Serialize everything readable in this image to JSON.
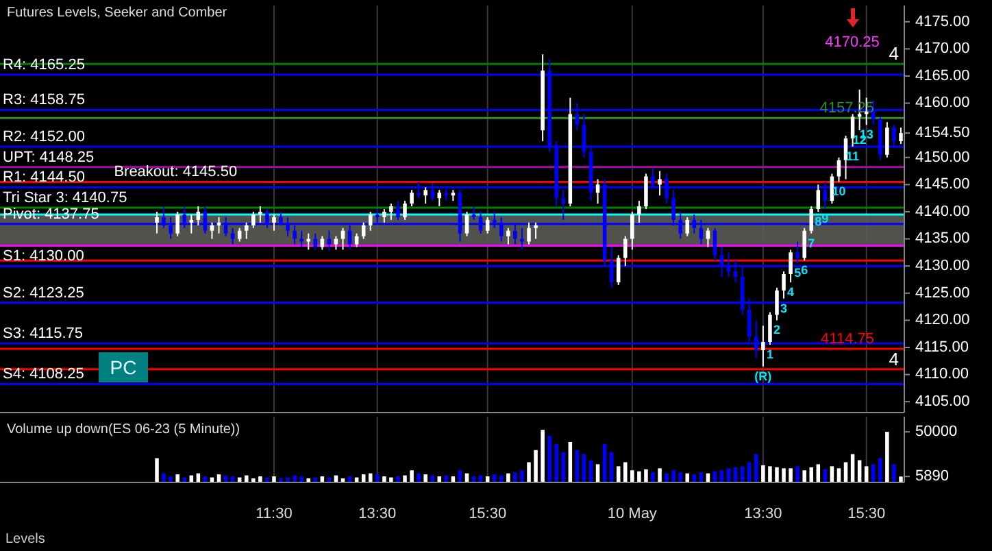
{
  "chart_data": [
    {
      "type": "candlestick",
      "title": "Futures Levels, Seeker and Comber",
      "categories": [
        null,
        null,
        null,
        null,
        null,
        null,
        null,
        null,
        null,
        null,
        null,
        null,
        null,
        null,
        null,
        null,
        null,
        "11:30",
        null,
        null,
        null,
        null,
        null,
        null,
        null,
        null,
        null,
        null,
        null,
        null,
        null,
        null,
        "13:30",
        null,
        null,
        null,
        null,
        null,
        null,
        null,
        null,
        null,
        null,
        null,
        null,
        null,
        null,
        null,
        "15:30",
        null,
        null,
        null,
        null,
        null,
        null,
        null,
        null,
        null,
        null,
        null,
        null,
        null,
        null,
        null,
        null,
        null,
        null,
        null,
        null,
        "10 May",
        null,
        null,
        null,
        null,
        null,
        null,
        null,
        null,
        null,
        null,
        null,
        null,
        null,
        null,
        null,
        null,
        null,
        null,
        "13:30",
        null,
        null,
        null,
        null,
        null,
        null,
        null,
        null,
        null,
        null,
        null,
        null,
        null,
        null,
        "15:30",
        null,
        null,
        null,
        null,
        null
      ],
      "ohlc": [
        [
          4138,
          4140,
          4136,
          4139
        ],
        [
          4139,
          4141,
          4137,
          4137.5
        ],
        [
          4137.5,
          4139,
          4135,
          4136
        ],
        [
          4136,
          4140,
          4135.5,
          4139.5
        ],
        [
          4139.5,
          4141,
          4137,
          4138
        ],
        [
          4138,
          4139.5,
          4136,
          4138.5
        ],
        [
          4138.5,
          4141,
          4137.5,
          4140
        ],
        [
          4140,
          4141,
          4136,
          4136.5
        ],
        [
          4136.5,
          4138,
          4135,
          4137.5
        ],
        [
          4137.5,
          4139,
          4136,
          4138
        ],
        [
          4138,
          4139,
          4135.5,
          4136
        ],
        [
          4136,
          4137,
          4134,
          4135
        ],
        [
          4135,
          4137,
          4134.5,
          4136.5
        ],
        [
          4136.5,
          4138,
          4135,
          4137.5
        ],
        [
          4137.5,
          4140,
          4137,
          4139.5
        ],
        [
          4139.5,
          4141,
          4138,
          4140
        ],
        [
          4140,
          4140.5,
          4137,
          4138
        ],
        [
          4138,
          4139.5,
          4136.5,
          4139
        ],
        [
          4139,
          4140,
          4137.5,
          4138
        ],
        [
          4138,
          4139,
          4135.5,
          4136.5
        ],
        [
          4136.5,
          4137.5,
          4134,
          4135
        ],
        [
          4135,
          4136.5,
          4133.5,
          4134.5
        ],
        [
          4134.5,
          4136,
          4133,
          4135
        ],
        [
          4135,
          4136,
          4133,
          4133.5
        ],
        [
          4133.5,
          4135.5,
          4133,
          4135
        ],
        [
          4135,
          4136.5,
          4132.75,
          4134
        ],
        [
          4134,
          4135.5,
          4133,
          4135
        ],
        [
          4135,
          4137,
          4133,
          4136.5
        ],
        [
          4136.5,
          4137.5,
          4133,
          4134
        ],
        [
          4134,
          4136,
          4133.5,
          4135.5
        ],
        [
          4135.5,
          4138,
          4135,
          4137.5
        ],
        [
          4137.5,
          4140,
          4136.5,
          4139.5
        ],
        [
          4139.5,
          4140.5,
          4138,
          4139
        ],
        [
          4139,
          4140.5,
          4138,
          4140
        ],
        [
          4140,
          4141.5,
          4138.5,
          4141
        ],
        [
          4141,
          4142,
          4138.5,
          4139
        ],
        [
          4139,
          4142,
          4138.5,
          4141.5
        ],
        [
          4141.5,
          4144,
          4141,
          4143.5
        ],
        [
          4143.5,
          4145.5,
          4142.5,
          4143
        ],
        [
          4143,
          4144.5,
          4141.5,
          4144
        ],
        [
          4144,
          4145.25,
          4142,
          4142.5
        ],
        [
          4142.5,
          4144,
          4141,
          4143.5
        ],
        [
          4143.5,
          4144.5,
          4142,
          4143
        ],
        [
          4143,
          4144,
          4142,
          4143.5
        ],
        [
          4143.5,
          4144,
          4134.5,
          4136
        ],
        [
          4136,
          4140,
          4135.5,
          4139.5
        ],
        [
          4139.5,
          4141,
          4138.5,
          4139
        ],
        [
          4139,
          4140,
          4136,
          4136.5
        ],
        [
          4136.5,
          4139,
          4136,
          4138.5
        ],
        [
          4138.5,
          4140,
          4137,
          4138
        ],
        [
          4138,
          4139,
          4134.5,
          4135.5
        ],
        [
          4135.5,
          4137,
          4134,
          4136.5
        ],
        [
          4136.5,
          4138,
          4134,
          4135
        ],
        [
          4135,
          4137,
          4133,
          4134.5
        ],
        [
          4134.5,
          4138,
          4134,
          4137
        ],
        [
          4137,
          4138,
          4135,
          4137.5
        ],
        [
          4155,
          4169,
          4153,
          4166
        ],
        [
          4166,
          4168,
          4151,
          4152
        ],
        [
          4152,
          4153,
          4141,
          4142.5
        ],
        [
          4142.5,
          4144,
          4138.5,
          4141.5
        ],
        [
          4141.5,
          4161,
          4141,
          4158
        ],
        [
          4158,
          4160,
          4155,
          4156
        ],
        [
          4156,
          4158,
          4150,
          4151
        ],
        [
          4151,
          4152,
          4142,
          4143.5
        ],
        [
          4143.5,
          4146,
          4141.5,
          4145
        ],
        [
          4145,
          4146,
          4130,
          4131
        ],
        [
          4131,
          4133.5,
          4126,
          4127
        ],
        [
          4127,
          4132,
          4126.5,
          4131.5
        ],
        [
          4131.5,
          4135.5,
          4130,
          4135
        ],
        [
          4135,
          4140,
          4133,
          4139.5
        ],
        [
          4139.5,
          4142,
          4138,
          4141
        ],
        [
          4141,
          4147,
          4140.5,
          4146.5
        ],
        [
          4146.5,
          4148,
          4144.5,
          4145
        ],
        [
          4145,
          4147.5,
          4143,
          4146
        ],
        [
          4146,
          4147,
          4141.5,
          4142.5
        ],
        [
          4142.5,
          4144,
          4137.5,
          4138.5
        ],
        [
          4138.5,
          4140,
          4135,
          4136
        ],
        [
          4136,
          4139,
          4135.5,
          4138.5
        ],
        [
          4138.5,
          4139.5,
          4136,
          4137
        ],
        [
          4137,
          4138.5,
          4134,
          4135
        ],
        [
          4135,
          4137,
          4133.5,
          4136.5
        ],
        [
          4136.5,
          4137,
          4131,
          4132
        ],
        [
          4132,
          4133.5,
          4128,
          4130
        ],
        [
          4130,
          4132.5,
          4128,
          4129
        ],
        [
          4129,
          4131,
          4127,
          4128
        ],
        [
          4128,
          4130,
          4121,
          4122
        ],
        [
          4122,
          4124,
          4116,
          4117
        ],
        [
          4117,
          4120,
          4113,
          4114.5
        ],
        [
          4114.5,
          4119,
          4111.5,
          4116
        ],
        [
          4116,
          4121.5,
          4115.5,
          4121
        ],
        [
          4121,
          4126,
          4120,
          4125.5
        ],
        [
          4125.5,
          4129,
          4124,
          4128.5
        ],
        [
          4128.5,
          4133,
          4127,
          4132.5
        ],
        [
          4132.5,
          4134.5,
          4130.5,
          4131.5
        ],
        [
          4131.5,
          4137,
          4131,
          4136.5
        ],
        [
          4136.5,
          4141,
          4136,
          4140.5
        ],
        [
          4140.5,
          4145,
          4140,
          4144
        ],
        [
          4144,
          4145.5,
          4140.5,
          4142
        ],
        [
          4142,
          4147,
          4141.5,
          4146.5
        ],
        [
          4146.5,
          4150,
          4145.5,
          4149.5
        ],
        [
          4149.5,
          4154,
          4146,
          4153.5
        ],
        [
          4153.5,
          4158,
          4152,
          4157.5
        ],
        [
          4157.5,
          4162.5,
          4155,
          4158
        ],
        [
          4158,
          4161,
          4156,
          4158.5
        ],
        [
          4158.5,
          4160.5,
          4156,
          4157
        ],
        [
          4157,
          4157.5,
          4149.5,
          4150.5
        ],
        [
          4150.5,
          4156.5,
          4150,
          4155.5
        ],
        [
          4155.5,
          4156,
          4152,
          4153
        ],
        [
          4153,
          4155.5,
          4152.5,
          4154.5
        ]
      ],
      "colors": [
        "#ffffff",
        "#0000ff",
        "#0000ff",
        "#ffffff",
        "#0000ff",
        "#ffffff",
        "#ffffff",
        "#0000ff",
        "#ffffff",
        "#ffffff",
        "#0000ff",
        "#0000ff",
        "#ffffff",
        "#ffffff",
        "#ffffff",
        "#ffffff",
        "#0000ff",
        "#ffffff",
        "#0000ff",
        "#0000ff",
        "#0000ff",
        "#0000ff",
        "#ffffff",
        "#0000ff",
        "#ffffff",
        "#0000ff",
        "#ffffff",
        "#ffffff",
        "#0000ff",
        "#ffffff",
        "#ffffff",
        "#ffffff",
        "#0000ff",
        "#ffffff",
        "#ffffff",
        "#0000ff",
        "#ffffff",
        "#ffffff",
        "#0000ff",
        "#ffffff",
        "#0000ff",
        "#ffffff",
        "#0000ff",
        "#ffffff",
        "#0000ff",
        "#ffffff",
        "#0000ff",
        "#0000ff",
        "#ffffff",
        "#0000ff",
        "#0000ff",
        "#ffffff",
        "#0000ff",
        "#0000ff",
        "#ffffff",
        "#ffffff",
        "#ffffff",
        "#0000ff",
        "#0000ff",
        "#0000ff",
        "#ffffff",
        "#0000ff",
        "#0000ff",
        "#0000ff",
        "#ffffff",
        "#0000ff",
        "#0000ff",
        "#ffffff",
        "#ffffff",
        "#ffffff",
        "#ffffff",
        "#ffffff",
        "#0000ff",
        "#ffffff",
        "#0000ff",
        "#0000ff",
        "#0000ff",
        "#ffffff",
        "#0000ff",
        "#0000ff",
        "#ffffff",
        "#0000ff",
        "#0000ff",
        "#0000ff",
        "#0000ff",
        "#0000ff",
        "#0000ff",
        "#0000ff",
        "#ffffff",
        "#ffffff",
        "#ffffff",
        "#ffffff",
        "#ffffff",
        "#0000ff",
        "#ffffff",
        "#ffffff",
        "#ffffff",
        "#0000ff",
        "#ffffff",
        "#ffffff",
        "#ffffff",
        "#ffffff",
        "#ffffff",
        "#ffffff",
        "#0000ff",
        "#0000ff",
        "#ffffff",
        "#0000ff",
        "#ffffff"
      ],
      "value_labels": [
        null,
        null,
        null,
        null,
        null,
        null,
        null,
        null,
        null,
        null,
        null,
        null,
        null,
        null,
        null,
        null,
        null,
        null,
        null,
        null,
        null,
        null,
        null,
        null,
        null,
        null,
        null,
        null,
        null,
        null,
        null,
        null,
        null,
        null,
        null,
        null,
        null,
        null,
        null,
        null,
        null,
        null,
        null,
        null,
        null,
        null,
        null,
        null,
        null,
        null,
        null,
        null,
        null,
        null,
        null,
        null,
        null,
        null,
        null,
        null,
        null,
        null,
        null,
        null,
        null,
        null,
        null,
        null,
        null,
        null,
        null,
        null,
        null,
        null,
        null,
        null,
        null,
        null,
        null,
        null,
        null,
        null,
        null,
        null,
        null,
        null,
        null,
        null,
        "(R)",
        "1",
        "2",
        "3",
        "4",
        "5",
        "6",
        "7",
        "8",
        "9",
        null,
        "10",
        null,
        "11",
        "12",
        "13",
        null,
        null,
        null,
        null,
        null
      ],
      "ylim": [
        4103,
        4178
      ],
      "yticks": [
        {
          "value": 4105,
          "label": "4105.00"
        },
        {
          "value": 4110,
          "label": "4110.00"
        },
        {
          "value": 4115,
          "label": "4115.00"
        },
        {
          "value": 4120,
          "label": "4120.00"
        },
        {
          "value": 4125,
          "label": "4125.00"
        },
        {
          "value": 4130,
          "label": "4130.00"
        },
        {
          "value": 4135,
          "label": "4135.00"
        },
        {
          "value": 4140,
          "label": "4140.00"
        },
        {
          "value": 4145,
          "label": "4145.00"
        },
        {
          "value": 4150,
          "label": "4150.00"
        },
        {
          "value": 4154.5,
          "label": "4154.50"
        },
        {
          "value": 4160,
          "label": "4160.00"
        },
        {
          "value": 4165,
          "label": "4165.00"
        },
        {
          "value": 4170,
          "label": "4170.00"
        },
        {
          "value": 4175,
          "label": "4175.00"
        }
      ],
      "grid": "x",
      "bands": [
        {
          "axis": "y",
          "from": 4133.75,
          "to": 4139.5,
          "color": "#5a5a55"
        }
      ],
      "ref_lines": [
        {
          "axis": "y",
          "value": 4165.25,
          "label": "R4: 4165.25",
          "color": "#0000ff"
        },
        {
          "axis": "y",
          "value": 4158.75,
          "label": "R3: 4158.75",
          "color": "#0000ff"
        },
        {
          "axis": "y",
          "value": 4152,
          "label": "R2: 4152.00",
          "color": "#0000ff"
        },
        {
          "axis": "y",
          "value": 4148.25,
          "label": "UPT: 4148.25",
          "color": "#a000a0"
        },
        {
          "axis": "y",
          "value": 4145.5,
          "label": "Breakout: 4145.50",
          "color": "#ff0000"
        },
        {
          "axis": "y",
          "value": 4144.5,
          "label": "R1: 4144.50",
          "color": "#0000ff"
        },
        {
          "axis": "y",
          "value": 4140.75,
          "label": "Tri Star 3: 4140.75",
          "color": "#008000"
        },
        {
          "axis": "y",
          "value": 4139.5,
          "color": "#00ffff"
        },
        {
          "axis": "y",
          "value": 4137.75,
          "label": "Pivot: 4137.75",
          "color": "#0000ff"
        },
        {
          "axis": "y",
          "value": 4133.75,
          "color": "#ff00ff"
        },
        {
          "axis": "y",
          "value": 4131,
          "color": "#ff0000"
        },
        {
          "axis": "y",
          "value": 4130,
          "label": "S1: 4130.00",
          "color": "#0000ff"
        },
        {
          "axis": "y",
          "value": 4123.25,
          "label": "S2: 4123.25",
          "color": "#0000ff"
        },
        {
          "axis": "y",
          "value": 4115.75,
          "label": "S3: 4115.75",
          "color": "#0000ff"
        },
        {
          "axis": "y",
          "value": 4108.25,
          "label": "S4: 4108.25",
          "color": "#0000ff"
        },
        {
          "axis": "y",
          "value": 4167.25,
          "color": "#008000"
        },
        {
          "axis": "y",
          "value": 4157.25,
          "label": "4157.25",
          "color": "#2e8b2e"
        },
        {
          "axis": "y",
          "value": 4114.75,
          "label": "4114.75",
          "color": "#ff0000"
        },
        {
          "axis": "y",
          "value": 4111,
          "color": "#ff0000"
        }
      ],
      "annotations": [
        "PC",
        "4170.25",
        {
          "text": "4",
          "y": 4167.25
        },
        {
          "text": "4",
          "y": 4111
        }
      ]
    },
    {
      "type": "bar",
      "title": "Volume up down(ES 06-23 (5 Minute))",
      "categories": [
        null,
        null,
        null,
        null,
        null,
        null,
        null,
        null,
        null,
        null,
        null,
        null,
        null,
        null,
        null,
        null,
        null,
        null,
        null,
        null,
        null,
        null,
        null,
        null,
        null,
        null,
        null,
        null,
        null,
        null,
        null,
        null,
        null,
        null,
        null,
        null,
        null,
        null,
        null,
        null,
        null,
        null,
        null,
        null,
        null,
        null,
        null,
        null,
        null,
        null,
        null,
        null,
        null,
        null,
        null,
        null,
        null,
        null,
        null,
        null,
        null,
        null,
        null,
        null,
        null,
        null,
        null,
        null,
        null,
        null,
        null,
        null,
        null,
        null,
        null,
        null,
        null,
        null,
        null,
        null,
        null,
        null,
        null,
        null,
        null,
        null,
        null,
        null,
        null,
        null,
        null,
        null,
        null,
        null,
        null,
        null,
        null,
        null,
        null,
        null,
        null,
        null,
        null,
        null,
        null,
        null,
        null,
        null,
        null
      ],
      "values": [
        24000,
        9000,
        6000,
        8000,
        5000,
        7000,
        9000,
        6000,
        5000,
        8000,
        7000,
        6000,
        5000,
        7000,
        4000,
        6000,
        5000,
        6000,
        4000,
        5000,
        7000,
        6000,
        4000,
        5000,
        6000,
        5000,
        7000,
        4000,
        6000,
        5000,
        8000,
        9000,
        8000,
        6000,
        5000,
        6000,
        7000,
        12000,
        9000,
        8000,
        7000,
        6000,
        7000,
        6000,
        12000,
        9000,
        6000,
        7000,
        6000,
        8000,
        7000,
        9000,
        10000,
        12000,
        20000,
        32000,
        52000,
        46000,
        38000,
        30000,
        40000,
        32000,
        28000,
        22000,
        18000,
        38000,
        30000,
        16000,
        20000,
        12000,
        11000,
        13000,
        10000,
        14000,
        9000,
        12000,
        10000,
        9000,
        8000,
        10000,
        9000,
        11000,
        12000,
        14000,
        15000,
        16000,
        20000,
        28000,
        17000,
        16000,
        15000,
        14000,
        14000,
        16000,
        12000,
        15000,
        18000,
        13000,
        16000,
        14000,
        20000,
        28000,
        22000,
        16000,
        18000,
        24000,
        50000,
        18000,
        5890
      ],
      "colors": [
        "#ffffff",
        "#0000ff",
        "#0000ff",
        "#ffffff",
        "#0000ff",
        "#ffffff",
        "#ffffff",
        "#0000ff",
        "#ffffff",
        "#ffffff",
        "#0000ff",
        "#0000ff",
        "#ffffff",
        "#ffffff",
        "#ffffff",
        "#ffffff",
        "#0000ff",
        "#ffffff",
        "#0000ff",
        "#0000ff",
        "#0000ff",
        "#0000ff",
        "#ffffff",
        "#0000ff",
        "#ffffff",
        "#0000ff",
        "#ffffff",
        "#ffffff",
        "#0000ff",
        "#ffffff",
        "#ffffff",
        "#ffffff",
        "#0000ff",
        "#ffffff",
        "#ffffff",
        "#0000ff",
        "#ffffff",
        "#ffffff",
        "#0000ff",
        "#ffffff",
        "#0000ff",
        "#ffffff",
        "#0000ff",
        "#ffffff",
        "#0000ff",
        "#ffffff",
        "#0000ff",
        "#0000ff",
        "#ffffff",
        "#0000ff",
        "#0000ff",
        "#ffffff",
        "#0000ff",
        "#0000ff",
        "#ffffff",
        "#ffffff",
        "#ffffff",
        "#0000ff",
        "#0000ff",
        "#0000ff",
        "#ffffff",
        "#0000ff",
        "#0000ff",
        "#0000ff",
        "#ffffff",
        "#0000ff",
        "#0000ff",
        "#ffffff",
        "#ffffff",
        "#ffffff",
        "#ffffff",
        "#ffffff",
        "#0000ff",
        "#ffffff",
        "#0000ff",
        "#0000ff",
        "#0000ff",
        "#ffffff",
        "#0000ff",
        "#0000ff",
        "#ffffff",
        "#0000ff",
        "#0000ff",
        "#0000ff",
        "#0000ff",
        "#0000ff",
        "#0000ff",
        "#0000ff",
        "#ffffff",
        "#ffffff",
        "#ffffff",
        "#ffffff",
        "#ffffff",
        "#0000ff",
        "#ffffff",
        "#ffffff",
        "#ffffff",
        "#0000ff",
        "#ffffff",
        "#ffffff",
        "#ffffff",
        "#ffffff",
        "#ffffff",
        "#ffffff",
        "#0000ff",
        "#0000ff",
        "#ffffff",
        "#0000ff",
        "#ffffff"
      ],
      "ylim": [
        0,
        65000
      ],
      "yticks": [
        50000,
        {
          "value": 5890,
          "label": "5890"
        }
      ],
      "grid": "x",
      "tick_labels": "y",
      "annotations": [
        "Levels"
      ]
    }
  ]
}
